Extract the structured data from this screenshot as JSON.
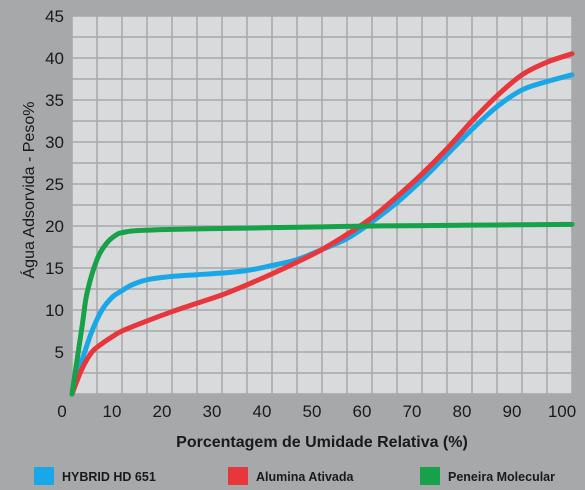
{
  "chart_data": {
    "type": "line",
    "xlabel": "Porcentagem de Umidade Relativa (%)",
    "ylabel": "Água Adsorvida - Peso%",
    "xlim": [
      0,
      100
    ],
    "ylim": [
      0,
      45
    ],
    "x_ticks": [
      0,
      10,
      20,
      30,
      40,
      50,
      60,
      70,
      80,
      90,
      100
    ],
    "y_ticks": [
      5,
      10,
      15,
      20,
      25,
      30,
      35,
      40,
      45
    ],
    "grid": true,
    "legend_position": "bottom",
    "colors": {
      "background": "#a7a8aa",
      "plot_area": "#d9dadb",
      "grid": "#a7a8aa",
      "text": "#1a1a1a"
    },
    "series": [
      {
        "name": "HYBRID HD 651",
        "color": "#1aa7e8",
        "x": [
          0,
          2,
          4,
          6,
          8,
          10,
          12,
          15,
          20,
          25,
          30,
          35,
          40,
          45,
          50,
          55,
          60,
          65,
          70,
          75,
          80,
          85,
          90,
          95,
          100
        ],
        "y": [
          0,
          4,
          7.5,
          10,
          11.5,
          12.3,
          13,
          13.6,
          14,
          14.2,
          14.4,
          14.7,
          15.3,
          16,
          17.2,
          18.5,
          20.5,
          22.8,
          25.5,
          28.5,
          31.5,
          34.2,
          36.2,
          37.2,
          38
        ]
      },
      {
        "name": "Alumina Ativada",
        "color": "#e8363d",
        "x": [
          0,
          2,
          4,
          6,
          8,
          10,
          15,
          20,
          25,
          30,
          35,
          40,
          45,
          50,
          55,
          60,
          65,
          70,
          75,
          80,
          85,
          90,
          95,
          100
        ],
        "y": [
          0,
          3,
          5,
          6,
          6.8,
          7.5,
          8.7,
          9.8,
          10.8,
          11.8,
          13,
          14.3,
          15.7,
          17.2,
          19,
          21,
          23.5,
          26.2,
          29.2,
          32.5,
          35.5,
          38,
          39.5,
          40.5
        ]
      },
      {
        "name": "Peneira Molecular",
        "color": "#17a14b",
        "x": [
          0,
          2,
          3,
          5,
          7,
          9,
          10,
          12,
          15,
          20,
          30,
          40,
          50,
          60,
          70,
          80,
          90,
          100
        ],
        "y": [
          0,
          8,
          12,
          16,
          18,
          19,
          19.2,
          19.4,
          19.5,
          19.6,
          19.7,
          19.8,
          19.9,
          20,
          20.05,
          20.1,
          20.15,
          20.2
        ]
      }
    ]
  }
}
